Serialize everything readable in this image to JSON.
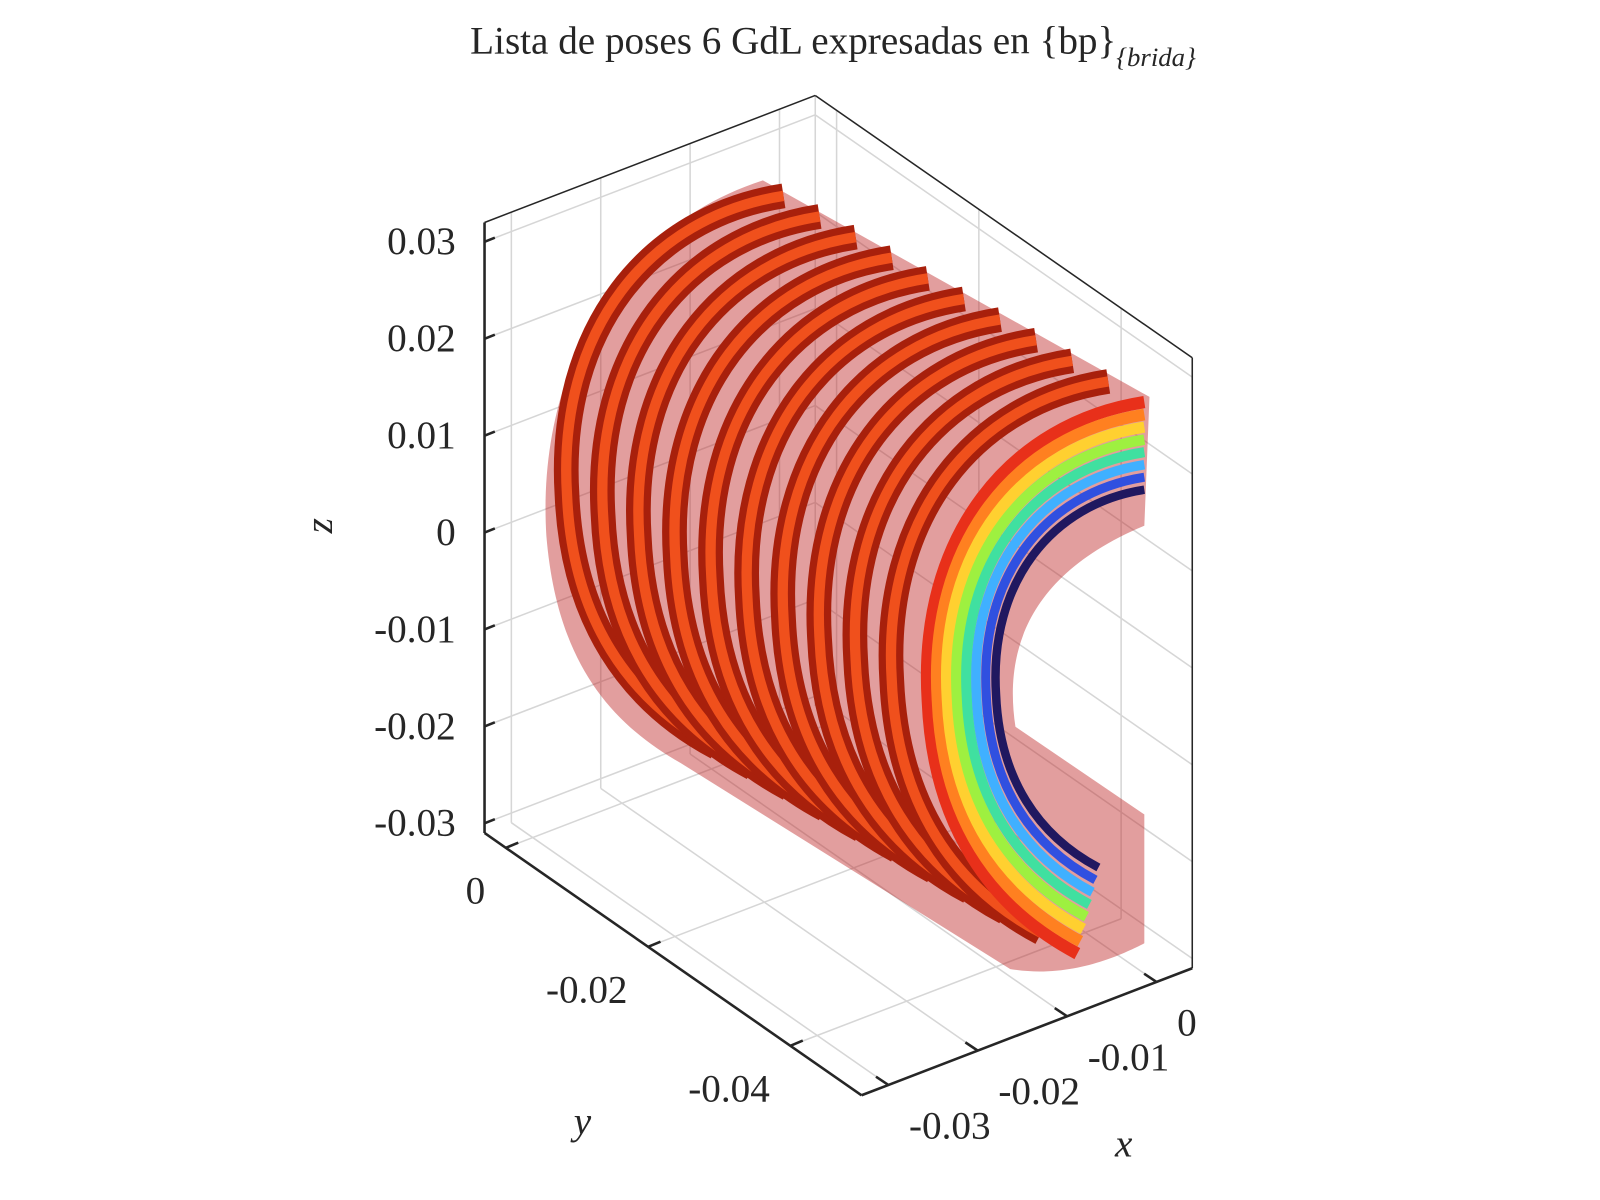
{
  "chart_data": {
    "type": "surface3d",
    "title": "Lista de poses 6 GdL expresadas en {bp}",
    "title_subscript": "{brida}",
    "xlabel": "x",
    "ylabel": "y",
    "zlabel": "z",
    "xlim": [
      -0.033,
      0.004
    ],
    "ylim": [
      -0.05,
      0.003
    ],
    "zlim": [
      -0.031,
      0.032
    ],
    "xticks": [
      -0.03,
      -0.02,
      -0.01,
      0
    ],
    "yticks": [
      -0.04,
      -0.02,
      0
    ],
    "zticks": [
      -0.03,
      -0.02,
      -0.01,
      0,
      0.01,
      0.02,
      0.03
    ],
    "grid": true
  }
}
